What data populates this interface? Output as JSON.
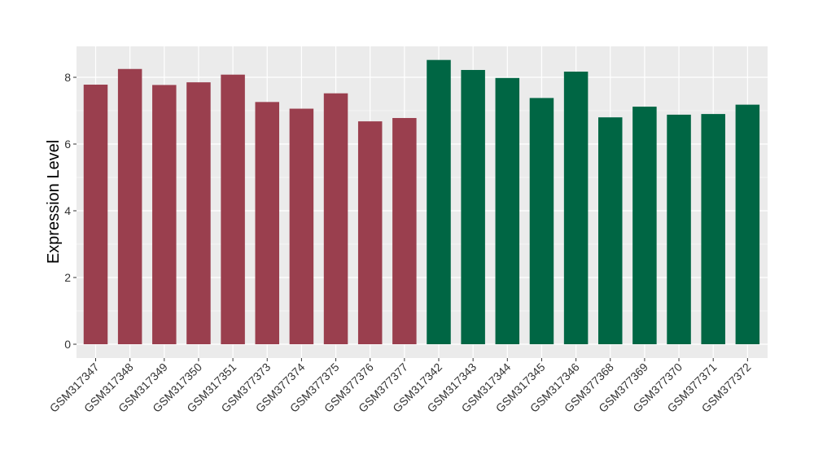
{
  "chart_data": {
    "type": "bar",
    "title": "",
    "xlabel": "",
    "ylabel": "Expression Level",
    "ylim": [
      0,
      8.9
    ],
    "yticks": [
      0,
      2,
      4,
      6,
      8
    ],
    "grid": true,
    "legend": "none",
    "colors": {
      "group1": "#9a3f4e",
      "group2": "#006644",
      "panel_bg": "#ebebeb",
      "grid": "#ffffff"
    },
    "categories": [
      "GSM317347",
      "GSM317348",
      "GSM317349",
      "GSM317350",
      "GSM317351",
      "GSM377373",
      "GSM377374",
      "GSM377375",
      "GSM377376",
      "GSM377377",
      "GSM317342",
      "GSM317343",
      "GSM317344",
      "GSM317345",
      "GSM317346",
      "GSM377368",
      "GSM377369",
      "GSM377370",
      "GSM377371",
      "GSM377372"
    ],
    "values": [
      7.78,
      8.25,
      7.77,
      7.85,
      8.08,
      7.26,
      7.06,
      7.52,
      6.68,
      6.78,
      8.52,
      8.22,
      7.98,
      7.38,
      8.17,
      6.8,
      7.12,
      6.88,
      6.9,
      7.18
    ],
    "groups": [
      1,
      1,
      1,
      1,
      1,
      1,
      1,
      1,
      1,
      1,
      2,
      2,
      2,
      2,
      2,
      2,
      2,
      2,
      2,
      2
    ]
  }
}
